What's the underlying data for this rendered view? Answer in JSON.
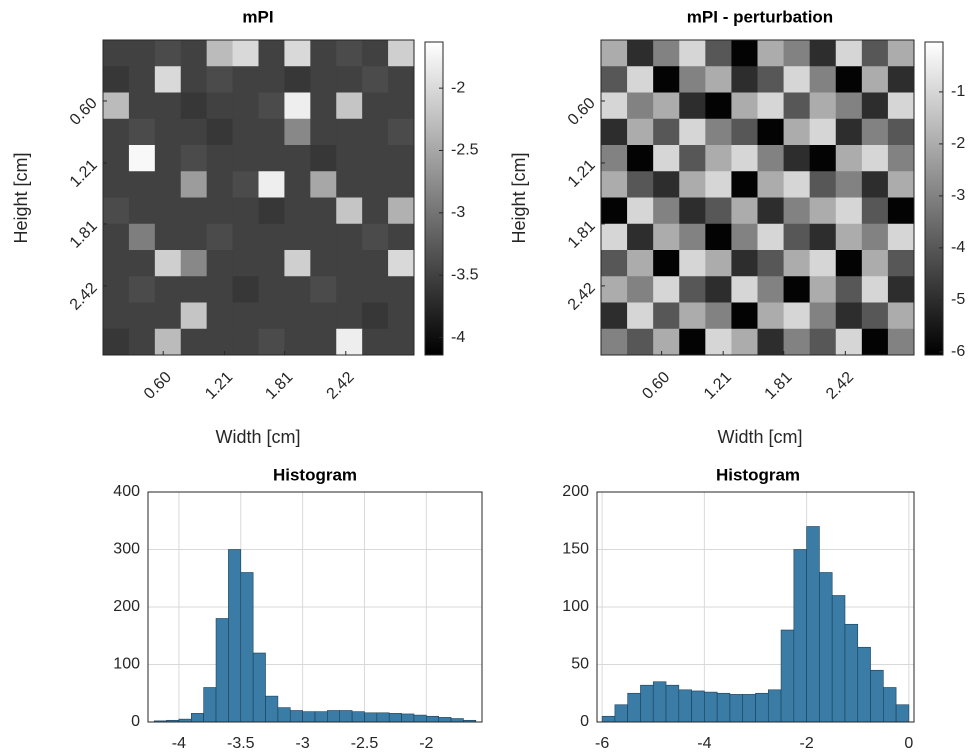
{
  "chart_data": [
    {
      "type": "heatmap",
      "title": "mPI",
      "xlabel": "Width [cm]",
      "ylabel": "Height [cm]",
      "colormap": "gray",
      "xlim": [
        0,
        3.1
      ],
      "ylim": [
        0,
        3.1
      ],
      "xticks": [
        {
          "value": 0.6,
          "label": "0.60"
        },
        {
          "value": 1.21,
          "label": "1.21"
        },
        {
          "value": 1.81,
          "label": "1.81"
        },
        {
          "value": 2.42,
          "label": "2.42"
        }
      ],
      "yticks": [
        {
          "value": 0.6,
          "label": "0.60"
        },
        {
          "value": 1.21,
          "label": "1.21"
        },
        {
          "value": 1.81,
          "label": "1.81"
        },
        {
          "value": 2.42,
          "label": "2.42"
        }
      ],
      "clim": [
        -4.14,
        -1.63
      ],
      "cticks": [
        -4,
        -3.5,
        -3,
        -2.5,
        -2
      ],
      "values": [
        [
          -3.5,
          -3.5,
          -3.4,
          -3.5,
          -2.3,
          -2.0,
          -3.5,
          -2.0,
          -3.5,
          -3.4,
          -3.5,
          -2.1
        ],
        [
          -3.6,
          -3.5,
          -2.0,
          -3.5,
          -3.4,
          -3.5,
          -3.5,
          -3.6,
          -3.5,
          -3.5,
          -3.4,
          -3.5
        ],
        [
          -2.3,
          -3.5,
          -3.5,
          -3.6,
          -3.5,
          -3.5,
          -3.4,
          -1.8,
          -3.5,
          -2.2,
          -3.5,
          -3.5
        ],
        [
          -3.5,
          -3.4,
          -3.5,
          -3.5,
          -3.6,
          -3.5,
          -3.5,
          -2.8,
          -3.5,
          -3.5,
          -3.5,
          -3.4
        ],
        [
          -3.5,
          -1.7,
          -3.5,
          -3.4,
          -3.5,
          -3.5,
          -3.5,
          -3.5,
          -3.6,
          -3.5,
          -3.5,
          -3.5
        ],
        [
          -3.5,
          -3.5,
          -3.5,
          -2.6,
          -3.5,
          -3.4,
          -1.8,
          -3.5,
          -2.5,
          -3.5,
          -3.5,
          -3.5
        ],
        [
          -3.4,
          -3.5,
          -3.5,
          -3.5,
          -3.5,
          -3.5,
          -3.6,
          -3.5,
          -3.5,
          -2.2,
          -3.5,
          -2.4
        ],
        [
          -3.5,
          -2.9,
          -3.5,
          -3.5,
          -3.4,
          -3.5,
          -3.5,
          -3.5,
          -3.5,
          -3.5,
          -3.4,
          -3.5
        ],
        [
          -3.5,
          -3.5,
          -2.1,
          -2.8,
          -3.5,
          -3.5,
          -3.5,
          -2.1,
          -3.5,
          -3.5,
          -3.5,
          -2.0
        ],
        [
          -3.5,
          -3.4,
          -3.5,
          -3.5,
          -3.5,
          -3.6,
          -3.5,
          -3.5,
          -3.4,
          -3.5,
          -3.5,
          -3.5
        ],
        [
          -3.5,
          -3.5,
          -3.5,
          -2.2,
          -3.5,
          -3.5,
          -3.5,
          -3.5,
          -3.5,
          -3.5,
          -3.6,
          -3.5
        ],
        [
          -3.6,
          -3.5,
          -2.3,
          -3.5,
          -3.5,
          -3.5,
          -3.4,
          -3.5,
          -3.5,
          -1.8,
          -3.5,
          -3.5
        ]
      ]
    },
    {
      "type": "heatmap",
      "title": "mPI - perturbation",
      "xlabel": "Width [cm]",
      "ylabel": "Height [cm]",
      "colormap": "gray",
      "xlim": [
        0,
        3.1
      ],
      "ylim": [
        0,
        3.1
      ],
      "xticks": [
        {
          "value": 0.6,
          "label": "0.60"
        },
        {
          "value": 1.21,
          "label": "1.21"
        },
        {
          "value": 1.81,
          "label": "1.81"
        },
        {
          "value": 2.42,
          "label": "2.42"
        }
      ],
      "yticks": [
        {
          "value": 0.6,
          "label": "0.60"
        },
        {
          "value": 1.21,
          "label": "1.21"
        },
        {
          "value": 1.81,
          "label": "1.81"
        },
        {
          "value": 2.42,
          "label": "2.42"
        }
      ],
      "clim": [
        -6.06,
        -0.04
      ],
      "cticks": [
        -6,
        -5,
        -4,
        -3,
        -2,
        -1
      ],
      "values": [
        [
          -2,
          -5,
          -3,
          -1,
          -4,
          -6,
          -2,
          -3,
          -5,
          -1,
          -4,
          -2
        ],
        [
          -4,
          -1,
          -6,
          -3,
          -2,
          -5,
          -4,
          -1,
          -3,
          -6,
          -2,
          -5
        ],
        [
          -1,
          -3,
          -2,
          -5,
          -6,
          -2,
          -1,
          -4,
          -2,
          -3,
          -5,
          -1
        ],
        [
          -5,
          -2,
          -4,
          -1,
          -3,
          -4,
          -6,
          -2,
          -1,
          -5,
          -3,
          -4
        ],
        [
          -3,
          -6,
          -1,
          -4,
          -2,
          -1,
          -3,
          -5,
          -6,
          -2,
          -1,
          -3
        ],
        [
          -2,
          -4,
          -5,
          -2,
          -1,
          -6,
          -2,
          -1,
          -4,
          -3,
          -5,
          -2
        ],
        [
          -6,
          -1,
          -3,
          -5,
          -4,
          -2,
          -5,
          -3,
          -2,
          -1,
          -4,
          -6
        ],
        [
          -1,
          -5,
          -2,
          -3,
          -6,
          -3,
          -1,
          -4,
          -5,
          -2,
          -3,
          -1
        ],
        [
          -4,
          -2,
          -6,
          -1,
          -2,
          -5,
          -4,
          -2,
          -1,
          -6,
          -2,
          -4
        ],
        [
          -2,
          -3,
          -1,
          -4,
          -5,
          -1,
          -3,
          -6,
          -2,
          -4,
          -1,
          -5
        ],
        [
          -5,
          -1,
          -4,
          -2,
          -3,
          -6,
          -2,
          -1,
          -3,
          -5,
          -4,
          -2
        ],
        [
          -3,
          -4,
          -2,
          -6,
          -1,
          -2,
          -5,
          -3,
          -4,
          -1,
          -6,
          -3
        ]
      ]
    },
    {
      "type": "histogram",
      "title": "Histogram",
      "color": "#3b7ca6",
      "grid": true,
      "xlim": [
        -4.25,
        -1.55
      ],
      "ylim": [
        0,
        400
      ],
      "xticks": [
        -4,
        -3.5,
        -3,
        -2.5,
        -2
      ],
      "yticks": [
        0,
        100,
        200,
        300,
        400
      ],
      "bins": [
        -4.2,
        -4.1,
        -4.0,
        -3.9,
        -3.8,
        -3.7,
        -3.6,
        -3.5,
        -3.4,
        -3.3,
        -3.2,
        -3.1,
        -3.0,
        -2.9,
        -2.8,
        -2.7,
        -2.6,
        -2.5,
        -2.4,
        -2.3,
        -2.2,
        -2.1,
        -2.0,
        -1.9,
        -1.8,
        -1.7,
        -1.6
      ],
      "values": [
        2,
        3,
        5,
        15,
        60,
        180,
        300,
        260,
        120,
        45,
        25,
        20,
        18,
        18,
        20,
        20,
        18,
        16,
        16,
        15,
        14,
        12,
        10,
        8,
        6,
        3
      ]
    },
    {
      "type": "histogram",
      "title": "Histogram",
      "color": "#3b7ca6",
      "grid": true,
      "xlim": [
        -6.1,
        0.1
      ],
      "ylim": [
        0,
        200
      ],
      "xticks": [
        -6,
        -4,
        -2,
        0
      ],
      "yticks": [
        0,
        50,
        100,
        150,
        200
      ],
      "bins": [
        -6,
        -5.75,
        -5.5,
        -5.25,
        -5,
        -4.75,
        -4.5,
        -4.25,
        -4,
        -3.75,
        -3.5,
        -3.25,
        -3,
        -2.75,
        -2.5,
        -2.25,
        -2,
        -1.75,
        -1.5,
        -1.25,
        -1,
        -0.75,
        -0.5,
        -0.25,
        0
      ],
      "values": [
        5,
        15,
        25,
        32,
        35,
        32,
        28,
        27,
        26,
        25,
        24,
        24,
        25,
        28,
        80,
        150,
        170,
        130,
        110,
        85,
        65,
        45,
        30,
        15
      ]
    }
  ]
}
